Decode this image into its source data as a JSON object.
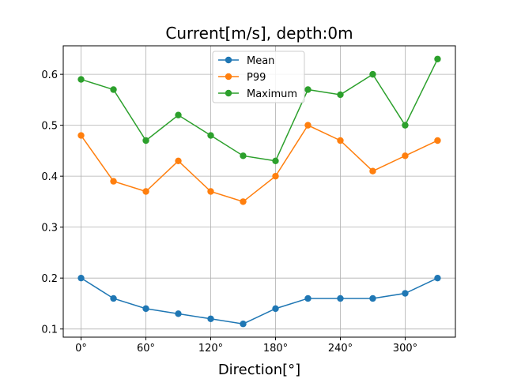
{
  "chart_data": {
    "type": "line",
    "title": "Current[m/s], depth:0m",
    "xlabel": "Direction[°]",
    "ylabel": "",
    "x": [
      0,
      30,
      60,
      90,
      120,
      150,
      180,
      210,
      240,
      270,
      300,
      330
    ],
    "xlim": [
      -16.5,
      346.5
    ],
    "ylim": [
      0.084,
      0.656
    ],
    "xticks": [
      0,
      60,
      120,
      180,
      240,
      300
    ],
    "xtick_labels": [
      "0°",
      "60°",
      "120°",
      "180°",
      "240°",
      "300°"
    ],
    "yticks": [
      0.1,
      0.2,
      0.3,
      0.4,
      0.5,
      0.6
    ],
    "ytick_labels": [
      "0.1",
      "0.2",
      "0.3",
      "0.4",
      "0.5",
      "0.6"
    ],
    "grid": true,
    "legend_position": "top-center",
    "series": [
      {
        "name": "Mean",
        "color": "#1f77b4",
        "values": [
          0.2,
          0.16,
          0.14,
          0.13,
          0.12,
          0.11,
          0.14,
          0.16,
          0.16,
          0.16,
          0.17,
          0.2
        ]
      },
      {
        "name": "P99",
        "color": "#ff7f0e",
        "values": [
          0.48,
          0.39,
          0.37,
          0.43,
          0.37,
          0.35,
          0.4,
          0.5,
          0.47,
          0.41,
          0.44,
          0.47
        ]
      },
      {
        "name": "Maximum",
        "color": "#2ca02c",
        "values": [
          0.59,
          0.57,
          0.47,
          0.52,
          0.48,
          0.44,
          0.43,
          0.57,
          0.56,
          0.6,
          0.5,
          0.63
        ]
      }
    ]
  }
}
